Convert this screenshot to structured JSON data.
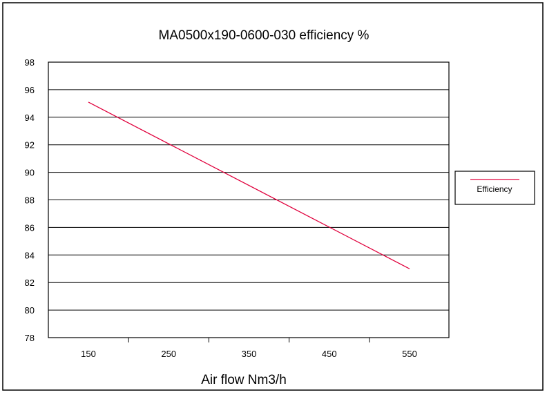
{
  "chart_data": {
    "type": "line",
    "title": "MA0500x190-0600-030 efficiency %",
    "xlabel": "Air flow Nm3/h",
    "ylabel": "",
    "x_ticks": [
      "150",
      "250",
      "350",
      "450",
      "550"
    ],
    "y_ticks": [
      "98",
      "96",
      "94",
      "92",
      "90",
      "88",
      "86",
      "84",
      "82",
      "80",
      "78"
    ],
    "xlim": [
      150,
      550
    ],
    "ylim": [
      78,
      98
    ],
    "grid": "horizontal",
    "legend_position": "right",
    "series": [
      {
        "name": "Efficiency",
        "color": "#e0003c",
        "x": [
          150,
          550
        ],
        "y": [
          95.1,
          83.0
        ]
      }
    ]
  }
}
